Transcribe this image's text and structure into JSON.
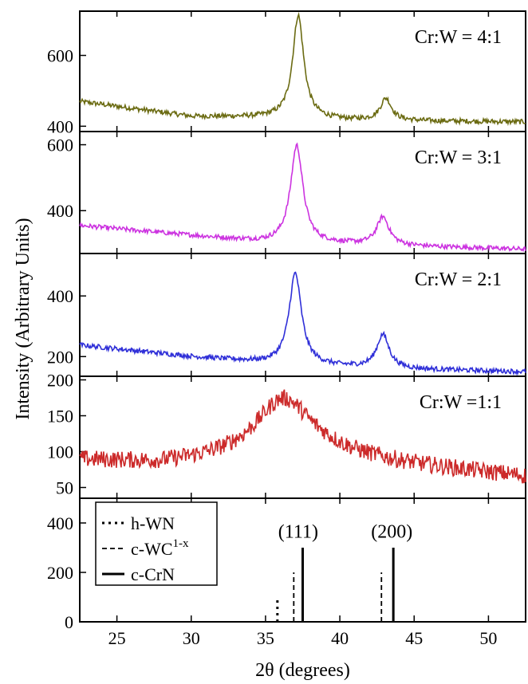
{
  "chart_data": {
    "type": "line",
    "xlabel": "2θ (degrees)",
    "ylabel": "Intensity (Arbitrary Units)",
    "xlim": [
      22.5,
      52.5
    ],
    "xticks": [
      25,
      30,
      35,
      40,
      45,
      50
    ],
    "panels": [
      {
        "label": "Cr:W = 4:1",
        "color": "#6b6b12",
        "ylim": [
          385,
          725
        ],
        "yticks": [
          400,
          600
        ],
        "peaks": [
          [
            37.2,
            290,
            0.45
          ],
          [
            43.1,
            62,
            0.45
          ]
        ],
        "baseline": [
          [
            22.5,
            470
          ],
          [
            30,
            428
          ],
          [
            36,
            425
          ],
          [
            40,
            418
          ],
          [
            45,
            415
          ],
          [
            52.5,
            412
          ]
        ],
        "noise": 7
      },
      {
        "label": "Cr:W = 3:1",
        "color": "#cc33e0",
        "ylim": [
          270,
          640
        ],
        "yticks": [
          400,
          600
        ],
        "peaks": [
          [
            37.1,
            295,
            0.5
          ],
          [
            42.9,
            85,
            0.5
          ]
        ],
        "baseline": [
          [
            22.5,
            355
          ],
          [
            30,
            325
          ],
          [
            35,
            305
          ],
          [
            40,
            300
          ],
          [
            45,
            292
          ],
          [
            52.5,
            283
          ]
        ],
        "noise": 7
      },
      {
        "label": "Cr:W = 2:1",
        "color": "#2f2fd8",
        "ylim": [
          135,
          540
        ],
        "yticks": [
          200,
          400
        ],
        "peaks": [
          [
            37.0,
            300,
            0.5
          ],
          [
            42.9,
            110,
            0.5
          ]
        ],
        "baseline": [
          [
            22.5,
            238
          ],
          [
            30,
            200
          ],
          [
            35,
            180
          ],
          [
            40,
            167
          ],
          [
            45,
            158
          ],
          [
            52.5,
            150
          ]
        ],
        "noise": 8
      },
      {
        "label": "Cr:W =1:1",
        "color": "#cc2a2a",
        "ylim": [
          35,
          205
        ],
        "yticks": [
          50,
          100,
          150,
          200
        ],
        "peaks": [
          [
            36.2,
            82,
            2.3
          ]
        ],
        "baseline": [
          [
            22.5,
            88
          ],
          [
            28,
            83
          ],
          [
            33,
            90
          ],
          [
            39,
            95
          ],
          [
            45,
            80
          ],
          [
            52.5,
            65
          ]
        ],
        "noise": 12
      }
    ],
    "reference": {
      "ylim": [
        0,
        500
      ],
      "yticks": [
        0,
        200,
        400
      ],
      "legend": [
        {
          "label": "h-WN",
          "style": "dotted"
        },
        {
          "label": "c-WC",
          "sup": "1-x",
          "style": "dashed"
        },
        {
          "label": "c-CrN",
          "style": "solid"
        }
      ],
      "lines": [
        {
          "series": "h-WN",
          "x": 35.8,
          "y": 100,
          "style": "dotted"
        },
        {
          "series": "c-WC1-x",
          "x": 36.9,
          "y": 200,
          "style": "dashed"
        },
        {
          "series": "c-CrN",
          "x": 37.5,
          "y": 300,
          "style": "solid"
        },
        {
          "series": "c-WC1-x",
          "x": 42.8,
          "y": 200,
          "style": "dashed"
        },
        {
          "series": "c-CrN",
          "x": 43.6,
          "y": 300,
          "style": "solid"
        }
      ],
      "annotations": [
        {
          "text": "(111)",
          "x": 37.2,
          "y": 340
        },
        {
          "text": "(200)",
          "x": 43.5,
          "y": 340
        }
      ]
    }
  }
}
